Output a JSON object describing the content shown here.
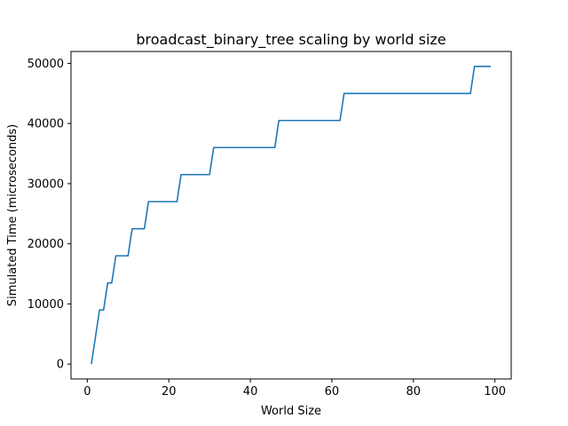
{
  "chart_data": {
    "type": "line",
    "title": "broadcast_binary_tree scaling by world size",
    "xlabel": "World Size",
    "ylabel": "Simulated Time (microseconds)",
    "xlim": [
      -4.0,
      104.0
    ],
    "ylim": [
      -2475,
      51975
    ],
    "xticks": [
      0,
      20,
      40,
      60,
      80,
      100
    ],
    "yticks": [
      0,
      10000,
      20000,
      30000,
      40000,
      50000
    ],
    "grid": false,
    "legend": "none",
    "series": [
      {
        "color": "#1f77b4",
        "x": [
          1,
          3,
          4,
          5,
          6,
          7,
          8,
          9,
          10,
          11,
          14,
          15,
          22,
          23,
          30,
          31,
          46,
          47,
          62,
          63,
          94,
          95,
          99
        ],
        "y": [
          0,
          9000,
          9000,
          13500,
          13500,
          18000,
          18000,
          18000,
          18000,
          22500,
          22500,
          27000,
          27000,
          31500,
          31500,
          36000,
          36000,
          40500,
          40500,
          45000,
          45000,
          49500,
          49500
        ]
      }
    ]
  }
}
